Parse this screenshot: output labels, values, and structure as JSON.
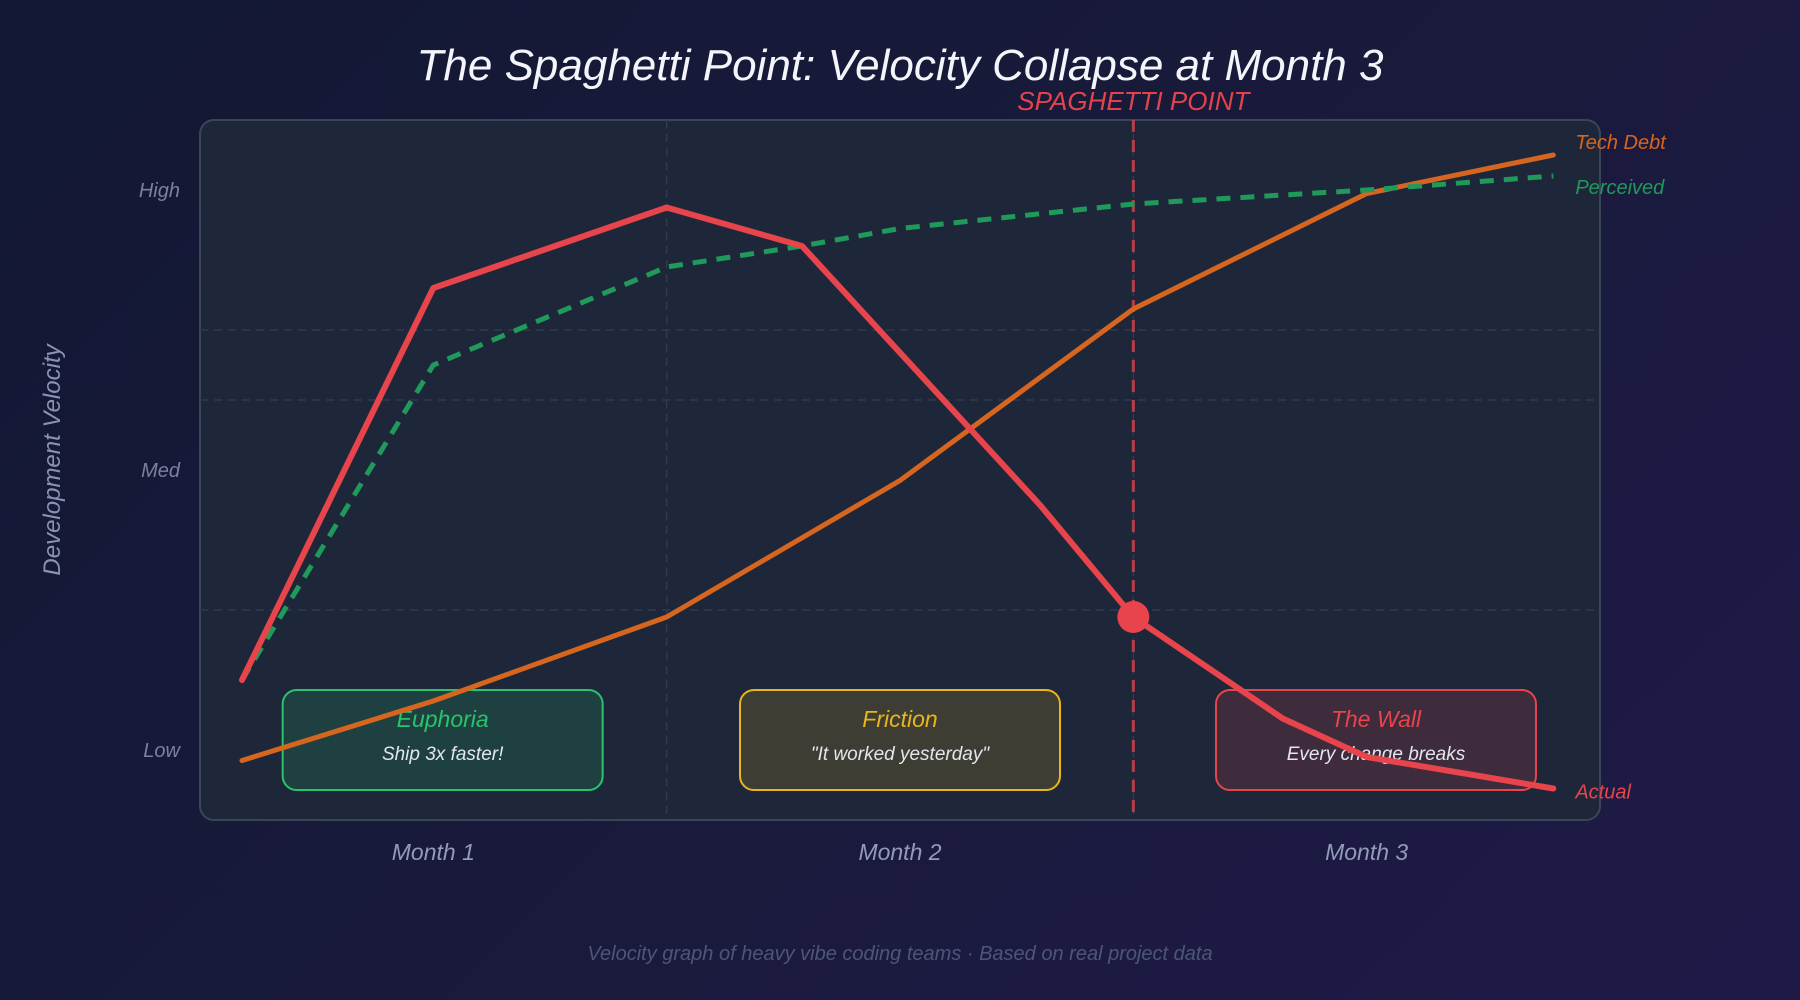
{
  "chart_data": {
    "type": "line",
    "title": "The Spaghetti Point: Velocity Collapse at Month 3",
    "ylabel": "Development Velocity",
    "xlabel": "",
    "x_ticks": [
      {
        "x": 1,
        "label": "Month 1"
      },
      {
        "x": 2,
        "label": "Month 2"
      },
      {
        "x": 3,
        "label": "Month 3"
      }
    ],
    "y_ticks": [
      {
        "y": 1,
        "label": "Low"
      },
      {
        "y": 5,
        "label": "Med"
      },
      {
        "y": 9,
        "label": "High"
      }
    ],
    "xlim": [
      0.5,
      3.5
    ],
    "ylim": [
      0.0,
      10.0
    ],
    "series": [
      {
        "name": "Actual",
        "color": "#e8444c",
        "style": "solid",
        "x": [
          0.59,
          1.0,
          1.5,
          1.79,
          2.3,
          2.5,
          2.82,
          3.0,
          3.4
        ],
        "y": [
          2.0,
          7.6,
          8.75,
          8.2,
          4.5,
          2.9,
          1.45,
          0.9,
          0.45
        ]
      },
      {
        "name": "Perceived",
        "color": "#1f9a5a",
        "style": "dashed",
        "x": [
          0.59,
          1.0,
          1.5,
          1.79,
          2.0,
          2.5,
          3.0,
          3.4
        ],
        "y": [
          2.0,
          6.5,
          7.9,
          8.2,
          8.45,
          8.8,
          9.0,
          9.2
        ]
      },
      {
        "name": "Tech Debt",
        "color": "#d6661f",
        "style": "solid",
        "x": [
          0.59,
          1.0,
          1.5,
          2.0,
          2.5,
          3.0,
          3.4
        ],
        "y": [
          0.85,
          1.7,
          2.9,
          4.85,
          7.3,
          8.95,
          9.5
        ]
      }
    ],
    "annotations": [
      {
        "type": "vline",
        "x": 2.5,
        "label": "SPAGHETTI POINT",
        "color": "#e8444c",
        "marker_y": 2.9
      }
    ],
    "phases": [
      {
        "x": 1.02,
        "title": "Euphoria",
        "subtitle": "Ship 3x faster!",
        "color": "#27c46a"
      },
      {
        "x": 2.0,
        "title": "Friction",
        "subtitle": "\"It worked yesterday\"",
        "color": "#e8b51c"
      },
      {
        "x": 3.02,
        "title": "The Wall",
        "subtitle": "Every change breaks",
        "color": "#e8444c"
      }
    ],
    "grid": true,
    "legend": "end-labels"
  },
  "footer": "Velocity graph of heavy vibe coding teams · Based on real project data"
}
